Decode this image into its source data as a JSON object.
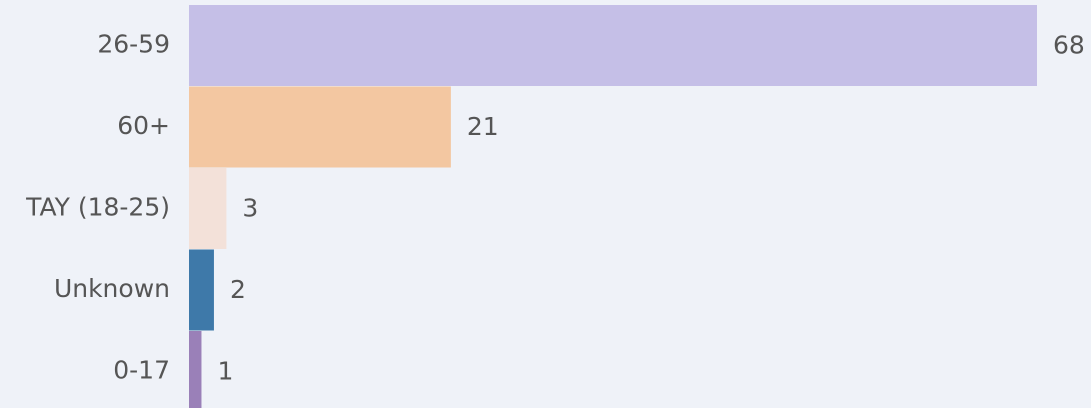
{
  "chart_data": {
    "type": "bar",
    "orientation": "horizontal",
    "categories": [
      "26-59",
      "60+",
      "TAY (18-25)",
      "Unknown",
      "0-17"
    ],
    "series": [
      {
        "values": [
          68,
          21,
          3,
          2,
          1
        ],
        "colors": [
          "#c5bfe7",
          "#f3c7a1",
          "#f3e1d9",
          "#3e79a9",
          "#9a80b8"
        ]
      }
    ],
    "grid": false
  }
}
